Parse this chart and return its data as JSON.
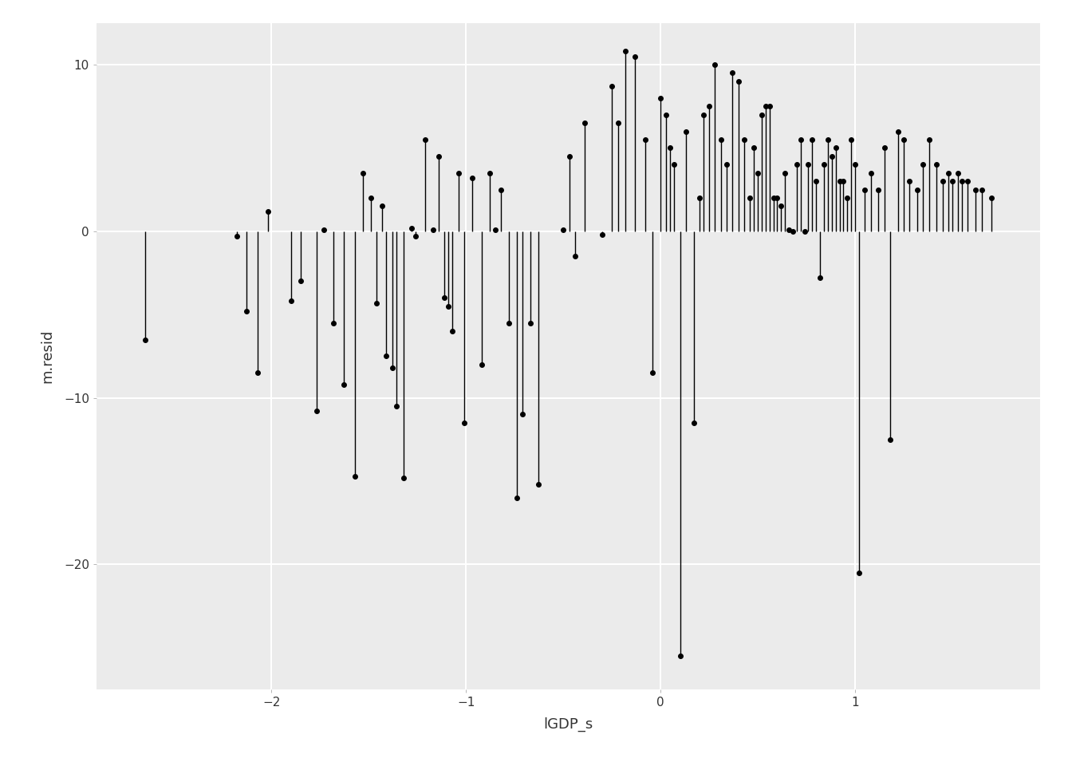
{
  "points": [
    [
      -2.65,
      -6.5
    ],
    [
      -2.18,
      -0.3
    ],
    [
      -2.13,
      -4.8
    ],
    [
      -2.07,
      -8.5
    ],
    [
      -2.02,
      1.2
    ],
    [
      -1.9,
      -4.2
    ],
    [
      -1.85,
      -3.0
    ],
    [
      -1.77,
      -10.8
    ],
    [
      -1.73,
      0.1
    ],
    [
      -1.68,
      -5.5
    ],
    [
      -1.63,
      -9.2
    ],
    [
      -1.57,
      -14.7
    ],
    [
      -1.53,
      3.5
    ],
    [
      -1.49,
      2.0
    ],
    [
      -1.46,
      -4.3
    ],
    [
      -1.43,
      1.5
    ],
    [
      -1.41,
      -7.5
    ],
    [
      -1.38,
      -8.2
    ],
    [
      -1.36,
      -10.5
    ],
    [
      -1.32,
      -14.8
    ],
    [
      -1.28,
      0.2
    ],
    [
      -1.26,
      -0.3
    ],
    [
      -1.21,
      5.5
    ],
    [
      -1.17,
      0.1
    ],
    [
      -1.14,
      4.5
    ],
    [
      -1.11,
      -4.0
    ],
    [
      -1.09,
      -4.5
    ],
    [
      -1.07,
      -6.0
    ],
    [
      -1.04,
      3.5
    ],
    [
      -1.01,
      -11.5
    ],
    [
      -0.97,
      3.2
    ],
    [
      -0.92,
      -8.0
    ],
    [
      -0.88,
      3.5
    ],
    [
      -0.85,
      0.1
    ],
    [
      -0.82,
      2.5
    ],
    [
      -0.78,
      -5.5
    ],
    [
      -0.74,
      -16.0
    ],
    [
      -0.71,
      -11.0
    ],
    [
      -0.67,
      -5.5
    ],
    [
      -0.63,
      -15.2
    ],
    [
      -0.5,
      0.1
    ],
    [
      -0.47,
      4.5
    ],
    [
      -0.44,
      -1.5
    ],
    [
      -0.39,
      6.5
    ],
    [
      -0.3,
      -0.2
    ],
    [
      -0.25,
      8.7
    ],
    [
      -0.22,
      6.5
    ],
    [
      -0.18,
      10.8
    ],
    [
      -0.13,
      10.5
    ],
    [
      -0.08,
      5.5
    ],
    [
      -0.04,
      -8.5
    ],
    [
      0.0,
      8.0
    ],
    [
      0.03,
      7.0
    ],
    [
      0.05,
      5.0
    ],
    [
      0.07,
      4.0
    ],
    [
      0.1,
      -25.5
    ],
    [
      0.13,
      6.0
    ],
    [
      0.17,
      -11.5
    ],
    [
      0.2,
      2.0
    ],
    [
      0.22,
      7.0
    ],
    [
      0.25,
      7.5
    ],
    [
      0.28,
      10.0
    ],
    [
      0.31,
      5.5
    ],
    [
      0.34,
      4.0
    ],
    [
      0.37,
      9.5
    ],
    [
      0.4,
      9.0
    ],
    [
      0.43,
      5.5
    ],
    [
      0.46,
      2.0
    ],
    [
      0.48,
      5.0
    ],
    [
      0.5,
      3.5
    ],
    [
      0.52,
      7.0
    ],
    [
      0.54,
      7.5
    ],
    [
      0.56,
      7.5
    ],
    [
      0.58,
      2.0
    ],
    [
      0.6,
      2.0
    ],
    [
      0.62,
      1.5
    ],
    [
      0.64,
      3.5
    ],
    [
      0.66,
      0.1
    ],
    [
      0.68,
      0.0
    ],
    [
      0.7,
      4.0
    ],
    [
      0.72,
      5.5
    ],
    [
      0.74,
      0.0
    ],
    [
      0.76,
      4.0
    ],
    [
      0.78,
      5.5
    ],
    [
      0.8,
      3.0
    ],
    [
      0.82,
      -2.8
    ],
    [
      0.84,
      4.0
    ],
    [
      0.86,
      5.5
    ],
    [
      0.88,
      4.5
    ],
    [
      0.9,
      5.0
    ],
    [
      0.92,
      3.0
    ],
    [
      0.94,
      3.0
    ],
    [
      0.96,
      2.0
    ],
    [
      0.98,
      5.5
    ],
    [
      1.0,
      4.0
    ],
    [
      1.02,
      -20.5
    ],
    [
      1.05,
      2.5
    ],
    [
      1.08,
      3.5
    ],
    [
      1.12,
      2.5
    ],
    [
      1.15,
      5.0
    ],
    [
      1.18,
      -12.5
    ],
    [
      1.22,
      6.0
    ],
    [
      1.25,
      5.5
    ],
    [
      1.28,
      3.0
    ],
    [
      1.32,
      2.5
    ],
    [
      1.35,
      4.0
    ],
    [
      1.38,
      5.5
    ],
    [
      1.42,
      4.0
    ],
    [
      1.45,
      3.0
    ],
    [
      1.48,
      3.5
    ],
    [
      1.5,
      3.0
    ],
    [
      1.53,
      3.5
    ],
    [
      1.55,
      3.0
    ],
    [
      1.58,
      3.0
    ],
    [
      1.62,
      2.5
    ],
    [
      1.65,
      2.5
    ],
    [
      1.7,
      2.0
    ]
  ],
  "panel_bg_color": "#EBEBEB",
  "figure_bg_color": "#FFFFFF",
  "grid_color": "#FFFFFF",
  "line_color": "#000000",
  "dot_color": "#000000",
  "tick_color": "#333333",
  "xlabel": "lGDP_s",
  "ylabel": "m.resid",
  "xlim": [
    -2.9,
    1.95
  ],
  "ylim": [
    -27.5,
    12.5
  ],
  "xticks": [
    -2,
    -1,
    0,
    1
  ],
  "yticks": [
    -20,
    -10,
    0,
    10
  ],
  "fontsize_axis_label": 13,
  "fontsize_ticks": 11,
  "dot_size": 16,
  "line_width": 1.0
}
